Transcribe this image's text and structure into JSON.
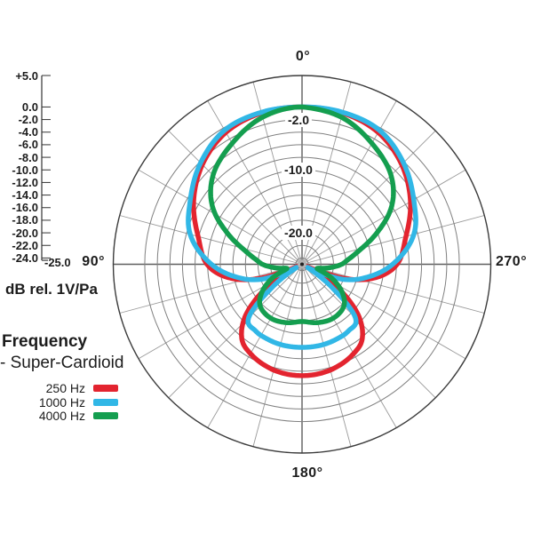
{
  "left_axis": {
    "unit_label": "dB rel. 1V/Pa",
    "end_tick_label": "-25.0",
    "ticks": [
      {
        "label": "+5.0",
        "db": 5
      },
      {
        "label": "0.0",
        "db": 0
      },
      {
        "label": "-2.0",
        "db": -2
      },
      {
        "label": "-4.0",
        "db": -4
      },
      {
        "label": "-6.0",
        "db": -6
      },
      {
        "label": "-8.0",
        "db": -8
      },
      {
        "label": "-10.0",
        "db": -10
      },
      {
        "label": "-12.0",
        "db": -12
      },
      {
        "label": "-14.0",
        "db": -14
      },
      {
        "label": "-16.0",
        "db": -16
      },
      {
        "label": "-18.0",
        "db": -18
      },
      {
        "label": "-20.0",
        "db": -20
      },
      {
        "label": "-22.0",
        "db": -22
      },
      {
        "label": "-24.0",
        "db": -24
      }
    ]
  },
  "legend": {
    "title": "Frequency",
    "subtitle": "- Super-Cardioid",
    "items": [
      {
        "label": "250 Hz",
        "color": "#e3242f"
      },
      {
        "label": "1000 Hz",
        "color": "#31b7e6"
      },
      {
        "label": "4000 Hz",
        "color": "#149e4f"
      }
    ]
  },
  "chart_data": {
    "type": "polar-line",
    "title": "Frequency - Super-Cardioid",
    "r_axis": {
      "label": "dB rel. 1V/Pa",
      "min_db": -25,
      "max_db": 5,
      "ring_values_db": [
        5,
        0,
        -2,
        -4,
        -6,
        -8,
        -10,
        -12,
        -14,
        -16,
        -18,
        -20,
        -22,
        -24
      ],
      "ring_labels": [
        {
          "label": "-2.0",
          "db": -2
        },
        {
          "label": "-10.0",
          "db": -10
        },
        {
          "label": "-20.0",
          "db": -20
        }
      ]
    },
    "theta_axis": {
      "zero_position": "top",
      "spoke_step_deg": 15,
      "labels": {
        "top": "0°",
        "left": "90°",
        "right": "270°",
        "bottom": "180°"
      }
    },
    "series": [
      {
        "name": "250 Hz",
        "color": "#e3242f",
        "points_deg_db": [
          [
            0,
            0
          ],
          [
            15,
            -0.1
          ],
          [
            30,
            -0.8
          ],
          [
            45,
            -2.6
          ],
          [
            60,
            -5.1
          ],
          [
            75,
            -7.9
          ],
          [
            90,
            -9.9
          ],
          [
            100,
            -13.0
          ],
          [
            108,
            -17.5
          ],
          [
            115,
            -24.3
          ],
          [
            123,
            -18.5
          ],
          [
            132,
            -13.0
          ],
          [
            141,
            -9.8
          ],
          [
            150,
            -8.6
          ],
          [
            165,
            -7.6
          ],
          [
            180,
            -7.3
          ]
        ]
      },
      {
        "name": "1000 Hz",
        "color": "#31b7e6",
        "points_deg_db": [
          [
            0,
            0
          ],
          [
            15,
            0
          ],
          [
            30,
            -0.4
          ],
          [
            45,
            -2.2
          ],
          [
            60,
            -4.5
          ],
          [
            75,
            -6.6
          ],
          [
            90,
            -10.6
          ],
          [
            100,
            -14.0
          ],
          [
            110,
            -18.0
          ],
          [
            119,
            -24.0
          ],
          [
            127,
            -19.5
          ],
          [
            135,
            -13.0
          ],
          [
            145,
            -12.1
          ],
          [
            155,
            -11.9
          ],
          [
            165,
            -11.8
          ],
          [
            180,
            -11.8
          ]
        ]
      },
      {
        "name": "4000 Hz",
        "color": "#149e4f",
        "points_deg_db": [
          [
            0,
            0
          ],
          [
            15,
            -0.8
          ],
          [
            30,
            -2.8
          ],
          [
            45,
            -5.0
          ],
          [
            57,
            -8.0
          ],
          [
            67,
            -12.0
          ],
          [
            76,
            -15.5
          ],
          [
            84,
            -17.6
          ],
          [
            90,
            -18.7
          ],
          [
            98,
            -20.8
          ],
          [
            106,
            -22.5
          ],
          [
            115,
            -19.8
          ],
          [
            125,
            -17.2
          ],
          [
            135,
            -15.6
          ],
          [
            150,
            -15.1
          ],
          [
            165,
            -15.4
          ],
          [
            180,
            -15.9
          ]
        ]
      }
    ]
  }
}
